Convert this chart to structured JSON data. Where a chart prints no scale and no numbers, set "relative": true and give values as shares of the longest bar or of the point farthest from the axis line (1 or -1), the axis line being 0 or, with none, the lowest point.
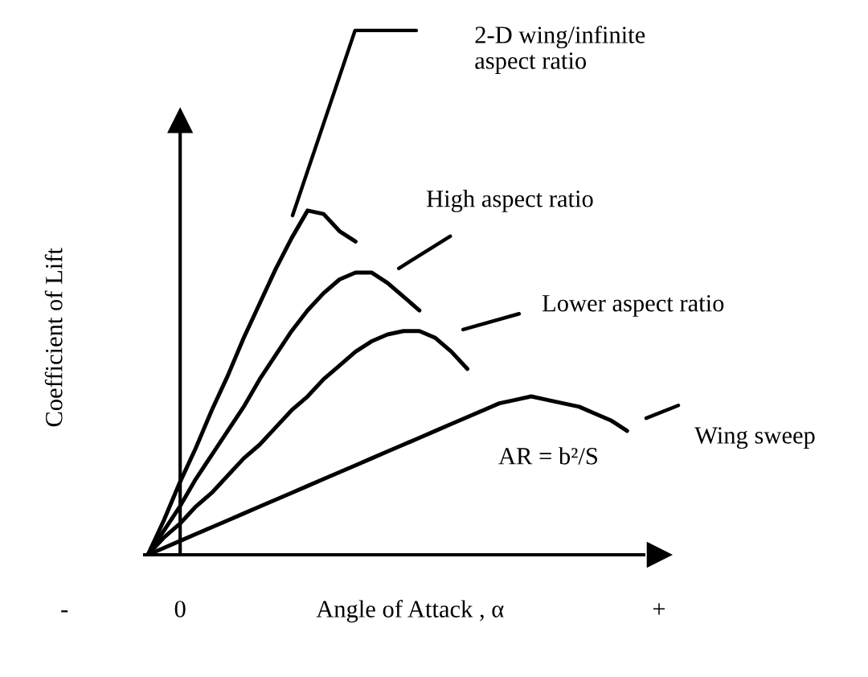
{
  "chart_data": {
    "type": "line",
    "relative": true,
    "xlabel": "Angle of Attack , α",
    "ylabel": "Coefficient of Lift",
    "categories": [
      null,
      null,
      null,
      null,
      null,
      null,
      null,
      null,
      null,
      null,
      null,
      null,
      null,
      null,
      null,
      null,
      null,
      null,
      null,
      null,
      null,
      null,
      null,
      null,
      null,
      null,
      null,
      null,
      null,
      null,
      null,
      null,
      null
    ],
    "series": [
      {
        "color": "#000000",
        "values": [
          0,
          0.1,
          0.21,
          0.31,
          0.42,
          0.52,
          0.63,
          0.73,
          0.83,
          0.92,
          1.0,
          0.99,
          0.94,
          0.91,
          null,
          null,
          null,
          null,
          null,
          null,
          null,
          null,
          null,
          null,
          null,
          null,
          null,
          null,
          null,
          null,
          null,
          null,
          null
        ]
      },
      {
        "color": "#000000",
        "values": [
          0,
          0.07,
          0.14,
          0.22,
          0.29,
          0.36,
          0.43,
          0.51,
          0.58,
          0.65,
          0.71,
          0.76,
          0.8,
          0.82,
          0.82,
          0.79,
          0.75,
          0.71,
          null,
          null,
          null,
          null,
          null,
          null,
          null,
          null,
          null,
          null,
          null,
          null,
          null,
          null,
          null
        ]
      },
      {
        "color": "#000000",
        "values": [
          0,
          0.05,
          0.09,
          0.14,
          0.18,
          0.23,
          0.28,
          0.32,
          0.37,
          0.42,
          0.46,
          0.51,
          0.55,
          0.59,
          0.62,
          0.64,
          0.65,
          0.65,
          0.63,
          0.59,
          0.54,
          null,
          null,
          null,
          null,
          null,
          null,
          null,
          null,
          null,
          null,
          null,
          null
        ]
      },
      {
        "color": "#000000",
        "values": [
          0,
          0.02,
          0.04,
          0.06,
          0.08,
          0.1,
          0.12,
          0.14,
          0.16,
          0.18,
          0.2,
          0.22,
          0.24,
          0.26,
          0.28,
          0.3,
          0.32,
          0.34,
          0.36,
          0.38,
          0.4,
          0.42,
          0.44,
          0.45,
          0.46,
          0.45,
          0.44,
          0.43,
          0.41,
          0.39,
          0.36,
          null,
          null
        ]
      }
    ],
    "annotations": [
      "2-D wing/infinite\naspect ratio",
      "High aspect ratio",
      "Lower aspect ratio",
      "Wing sweep",
      "AR = b²/S",
      "-",
      "0",
      "+"
    ],
    "marker": "none",
    "line_style": "solid"
  }
}
